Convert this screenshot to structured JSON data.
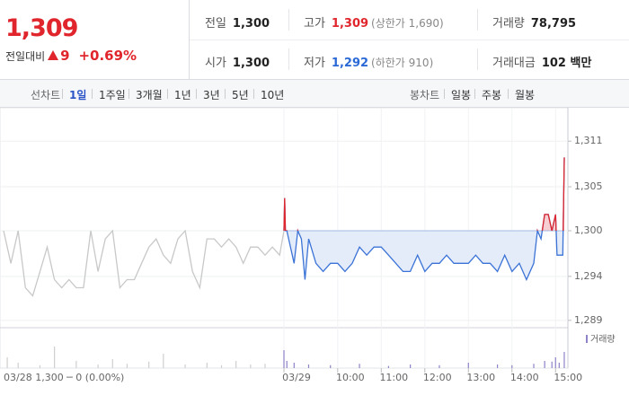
{
  "header": {
    "price": "1,309",
    "change_label": "전일대비",
    "change": "9",
    "change_pct": "+0.69%",
    "stats": [
      [
        {
          "label": "전일",
          "value": "1,300"
        },
        {
          "label": "고가",
          "value": "1,309",
          "note": "(상한가 1,690)"
        },
        {
          "label": "거래량",
          "value": "78,795"
        }
      ],
      [
        {
          "label": "시가",
          "value": "1,300"
        },
        {
          "label": "저가",
          "value": "1,292",
          "note": "(하한가 910)"
        },
        {
          "label": "거래대금",
          "value": "102 백만"
        }
      ]
    ]
  },
  "tabs": {
    "line_label": "선차트",
    "line_periods": [
      "1일",
      "1주일",
      "3개월",
      "1년",
      "3년",
      "5년",
      "10년"
    ],
    "selected": 0,
    "candle_label": "봉차트",
    "candle_periods": [
      "일봉",
      "주봉",
      "월봉"
    ]
  },
  "chart_data": {
    "type": "line",
    "caption": "03/28 1,300 ─ 0 (0.00%)",
    "baseline": 1300,
    "grid": true,
    "xlim": [
      -405,
      377
    ],
    "ylim": [
      1288.1,
      1314
    ],
    "xticks": [
      {
        "value": -14,
        "label": "03/29"
      },
      {
        "value": 60,
        "label": "10:00"
      },
      {
        "value": 120,
        "label": "11:00"
      },
      {
        "value": 180,
        "label": "12:00"
      },
      {
        "value": 240,
        "label": "13:00"
      },
      {
        "value": 300,
        "label": "14:00"
      },
      {
        "value": 360,
        "label": "15:00"
      }
    ],
    "yticks": [
      {
        "value": 1311,
        "label": "1,311"
      },
      {
        "value": 1305.4,
        "label": "1,305"
      },
      {
        "value": 1300,
        "label": "1,300"
      },
      {
        "value": 1294.4,
        "label": "1,294"
      },
      {
        "value": 1289,
        "label": "1,289"
      }
    ],
    "series": [
      {
        "color": "#c8c8c8",
        "x": [
          -400,
          -390,
          -380,
          -370,
          -360,
          -350,
          -340,
          -330,
          -320,
          -310,
          -300,
          -290,
          -280,
          -270,
          -260,
          -250,
          -240,
          -230,
          -220,
          -210,
          -200,
          -190,
          -180,
          -170,
          -160,
          -150,
          -140,
          -130,
          -120,
          -110,
          -100,
          -90,
          -80,
          -70,
          -60,
          -50,
          -40,
          -30,
          -20,
          -14
        ],
        "values": [
          1300,
          1296,
          1300,
          1293,
          1292,
          1295,
          1298,
          1294,
          1293,
          1294,
          1293,
          1293,
          1300,
          1295,
          1299,
          1300,
          1293,
          1294,
          1294,
          1296,
          1298,
          1299,
          1297,
          1296,
          1299,
          1300,
          1295,
          1293,
          1299,
          1299,
          1298,
          1299,
          1298,
          1296,
          1298,
          1298,
          1297,
          1298,
          1297,
          1300
        ]
      },
      {
        "color": "#3b73d6",
        "up_color": "#e0262c",
        "fill": "#e4ecfa",
        "up_fill": "#f7cfd2",
        "x": [
          -14,
          -13,
          -12,
          -10,
          0,
          5,
          10,
          15,
          20,
          30,
          40,
          50,
          60,
          70,
          80,
          90,
          100,
          110,
          120,
          130,
          140,
          150,
          160,
          170,
          180,
          190,
          200,
          210,
          220,
          230,
          240,
          250,
          260,
          270,
          280,
          290,
          300,
          310,
          320,
          330,
          335,
          340,
          345,
          350,
          355,
          360,
          362,
          370,
          372
        ],
        "values": [
          1300,
          1304,
          1300,
          1300,
          1296,
          1300,
          1299,
          1294,
          1299,
          1296,
          1295,
          1296,
          1296,
          1295,
          1296,
          1298,
          1297,
          1298,
          1298,
          1297,
          1296,
          1295,
          1295,
          1297,
          1295,
          1296,
          1296,
          1297,
          1296,
          1296,
          1296,
          1297,
          1296,
          1296,
          1295,
          1297,
          1295,
          1296,
          1294,
          1296,
          1300,
          1299,
          1302,
          1302,
          1300,
          1302,
          1297,
          1297,
          1309
        ]
      }
    ],
    "volume": {
      "name": "거래량",
      "color": "#8e82c9",
      "prev_color": "#cfcfcf",
      "ylim": [
        0,
        100
      ],
      "x": [
        -395,
        -380,
        -350,
        -330,
        -300,
        -270,
        -250,
        -230,
        -200,
        -180,
        -150,
        -120,
        -100,
        -80,
        -60,
        -40,
        -14,
        -10,
        0,
        20,
        50,
        90,
        130,
        160,
        200,
        240,
        280,
        300,
        330,
        345,
        355,
        360,
        365,
        372
      ],
      "values": [
        30,
        15,
        8,
        60,
        20,
        10,
        25,
        12,
        18,
        40,
        10,
        15,
        8,
        20,
        10,
        12,
        50,
        20,
        15,
        10,
        8,
        12,
        6,
        10,
        8,
        15,
        10,
        8,
        12,
        20,
        18,
        30,
        15,
        45
      ]
    }
  }
}
